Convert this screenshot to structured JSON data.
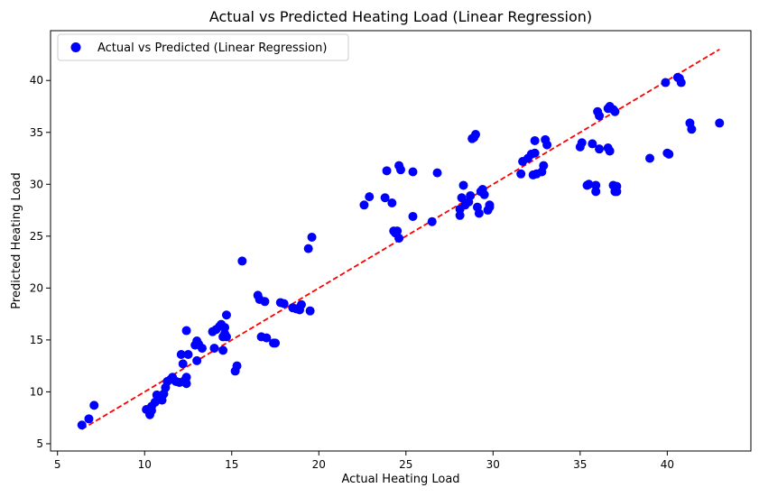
{
  "chart_data": {
    "type": "scatter",
    "title": "Actual vs Predicted Heating Load (Linear Regression)",
    "xlabel": "Actual Heating Load",
    "ylabel": "Predicted Heating Load",
    "xlim": [
      4.6,
      44.8
    ],
    "ylim": [
      4.3,
      44.8
    ],
    "xticks": [
      5,
      10,
      15,
      20,
      25,
      30,
      35,
      40
    ],
    "yticks": [
      5,
      10,
      15,
      20,
      25,
      30,
      35,
      40
    ],
    "grid": false,
    "legend": {
      "position": "top-left",
      "entries": [
        "Actual vs Predicted (Linear Regression)"
      ]
    },
    "series": [
      {
        "name": "Actual vs Predicted (Linear Regression)",
        "kind": "scatter",
        "color": "#0000ff",
        "points": [
          [
            6.4,
            6.8
          ],
          [
            6.8,
            7.4
          ],
          [
            7.1,
            8.7
          ],
          [
            10.1,
            8.3
          ],
          [
            10.3,
            7.8
          ],
          [
            10.4,
            8.2
          ],
          [
            10.4,
            8.6
          ],
          [
            10.6,
            9.0
          ],
          [
            10.7,
            9.7
          ],
          [
            10.8,
            9.3
          ],
          [
            10.9,
            9.6
          ],
          [
            11.0,
            9.2
          ],
          [
            11.1,
            9.8
          ],
          [
            11.2,
            10.4
          ],
          [
            11.3,
            11.0
          ],
          [
            11.5,
            11.2
          ],
          [
            11.6,
            11.4
          ],
          [
            11.8,
            11.0
          ],
          [
            12.0,
            10.9
          ],
          [
            12.1,
            13.6
          ],
          [
            12.2,
            12.7
          ],
          [
            12.3,
            11.1
          ],
          [
            12.4,
            11.4
          ],
          [
            12.4,
            10.8
          ],
          [
            12.5,
            13.6
          ],
          [
            12.4,
            15.9
          ],
          [
            12.9,
            14.5
          ],
          [
            13.0,
            14.9
          ],
          [
            13.1,
            14.6
          ],
          [
            13.3,
            14.2
          ],
          [
            13.0,
            13.0
          ],
          [
            13.9,
            15.8
          ],
          [
            14.1,
            16.0
          ],
          [
            14.0,
            14.2
          ],
          [
            14.3,
            16.3
          ],
          [
            14.5,
            15.3
          ],
          [
            14.4,
            16.5
          ],
          [
            14.6,
            15.6
          ],
          [
            14.6,
            16.2
          ],
          [
            14.5,
            14.0
          ],
          [
            14.7,
            15.3
          ],
          [
            14.7,
            17.4
          ],
          [
            15.2,
            12.0
          ],
          [
            15.3,
            12.5
          ],
          [
            15.6,
            22.6
          ],
          [
            16.5,
            19.3
          ],
          [
            16.6,
            18.9
          ],
          [
            16.7,
            15.3
          ],
          [
            16.9,
            18.7
          ],
          [
            17.0,
            15.2
          ],
          [
            17.4,
            14.7
          ],
          [
            17.5,
            14.7
          ],
          [
            17.8,
            18.6
          ],
          [
            18.0,
            18.5
          ],
          [
            18.5,
            18.1
          ],
          [
            18.7,
            18.0
          ],
          [
            19.0,
            18.4
          ],
          [
            18.9,
            17.9
          ],
          [
            19.4,
            23.8
          ],
          [
            19.5,
            17.8
          ],
          [
            19.6,
            24.9
          ],
          [
            22.6,
            28.0
          ],
          [
            22.9,
            28.8
          ],
          [
            23.8,
            28.7
          ],
          [
            23.9,
            31.3
          ],
          [
            24.2,
            28.2
          ],
          [
            24.3,
            25.5
          ],
          [
            24.4,
            25.3
          ],
          [
            24.5,
            25.5
          ],
          [
            24.6,
            31.8
          ],
          [
            24.7,
            31.4
          ],
          [
            24.6,
            24.8
          ],
          [
            25.4,
            31.2
          ],
          [
            25.4,
            26.9
          ],
          [
            26.5,
            26.4
          ],
          [
            26.8,
            31.1
          ],
          [
            28.1,
            27.0
          ],
          [
            28.1,
            27.6
          ],
          [
            28.2,
            28.7
          ],
          [
            28.3,
            29.9
          ],
          [
            28.4,
            28.0
          ],
          [
            28.6,
            28.3
          ],
          [
            28.7,
            28.9
          ],
          [
            28.8,
            34.4
          ],
          [
            28.9,
            34.5
          ],
          [
            29.0,
            34.8
          ],
          [
            29.1,
            27.8
          ],
          [
            29.2,
            27.2
          ],
          [
            29.3,
            29.3
          ],
          [
            29.4,
            29.5
          ],
          [
            29.5,
            29.0
          ],
          [
            29.7,
            27.5
          ],
          [
            29.8,
            27.8
          ],
          [
            29.8,
            28.0
          ],
          [
            31.6,
            31.0
          ],
          [
            31.7,
            32.2
          ],
          [
            32.0,
            32.5
          ],
          [
            32.2,
            32.9
          ],
          [
            32.3,
            30.9
          ],
          [
            32.4,
            34.2
          ],
          [
            32.4,
            33.0
          ],
          [
            32.5,
            31.0
          ],
          [
            32.8,
            31.2
          ],
          [
            32.9,
            31.8
          ],
          [
            33.0,
            34.3
          ],
          [
            33.1,
            33.8
          ],
          [
            35.0,
            33.6
          ],
          [
            35.1,
            34.0
          ],
          [
            35.4,
            29.9
          ],
          [
            35.5,
            30.0
          ],
          [
            35.7,
            33.9
          ],
          [
            35.9,
            29.9
          ],
          [
            35.9,
            29.3
          ],
          [
            36.0,
            37.0
          ],
          [
            36.1,
            36.6
          ],
          [
            36.1,
            33.4
          ],
          [
            36.6,
            33.5
          ],
          [
            36.7,
            33.2
          ],
          [
            36.6,
            37.3
          ],
          [
            36.7,
            37.5
          ],
          [
            36.9,
            37.2
          ],
          [
            36.9,
            29.9
          ],
          [
            37.0,
            29.3
          ],
          [
            37.0,
            37.0
          ],
          [
            37.1,
            29.8
          ],
          [
            37.1,
            29.3
          ],
          [
            39.0,
            32.5
          ],
          [
            39.9,
            39.8
          ],
          [
            40.0,
            33.0
          ],
          [
            40.1,
            32.9
          ],
          [
            40.6,
            40.3
          ],
          [
            40.7,
            40.2
          ],
          [
            40.8,
            39.8
          ],
          [
            41.3,
            35.9
          ],
          [
            41.4,
            35.3
          ],
          [
            43.0,
            35.9
          ]
        ]
      },
      {
        "name": "",
        "kind": "reference-line",
        "style": "dashed",
        "color": "#ff0000",
        "points": [
          [
            6.4,
            6.4
          ],
          [
            43.0,
            43.0
          ]
        ]
      }
    ]
  }
}
